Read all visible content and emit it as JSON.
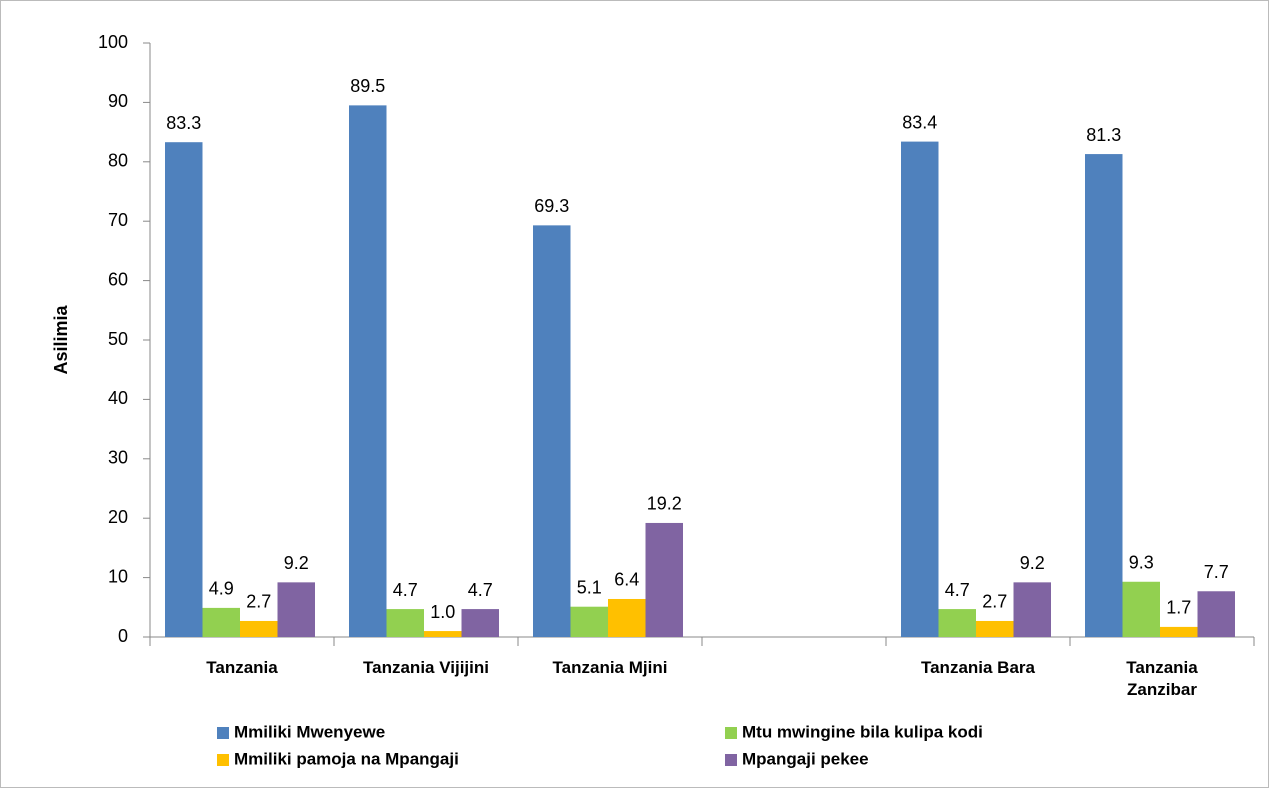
{
  "chart_data": {
    "type": "bar",
    "y_label": "Asilimia",
    "categories": [
      "Tanzania",
      "Tanzania Vijijini",
      "Tanzania Mjini",
      null,
      "Tanzania Bara",
      "Tanzania\nZanzibar"
    ],
    "series": [
      {
        "name": "Mmiliki Mwenyewe",
        "color": "#4f81bd",
        "values": [
          83.3,
          89.5,
          69.3,
          null,
          83.4,
          81.3
        ],
        "value_labels": [
          "83.3",
          "89.5",
          "69.3",
          null,
          "83.4",
          "81.3"
        ]
      },
      {
        "name": "Mtu mwingine bila kulipa kodi",
        "color": "#92d050",
        "values": [
          4.9,
          4.7,
          5.1,
          null,
          4.7,
          9.3
        ],
        "value_labels": [
          "4.9",
          "4.7",
          "5.1",
          null,
          "4.7",
          "9.3"
        ]
      },
      {
        "name": "Mmiliki pamoja na Mpangaji",
        "color": "#ffc000",
        "values": [
          2.7,
          1.0,
          6.4,
          null,
          2.7,
          1.7
        ],
        "value_labels": [
          "2.7",
          "1.0",
          "6.4",
          null,
          "2.7",
          "1.7"
        ]
      },
      {
        "name": "Mpangaji pekee",
        "color": "#8064a2",
        "values": [
          9.2,
          4.7,
          19.2,
          null,
          9.2,
          7.7
        ],
        "value_labels": [
          "9.2",
          "4.7",
          "19.2",
          null,
          "9.2",
          "7.7"
        ]
      }
    ],
    "ylim": [
      0,
      100
    ],
    "yticks": [
      0,
      10,
      20,
      30,
      40,
      50,
      60,
      70,
      80,
      90,
      100
    ],
    "grid": false
  }
}
